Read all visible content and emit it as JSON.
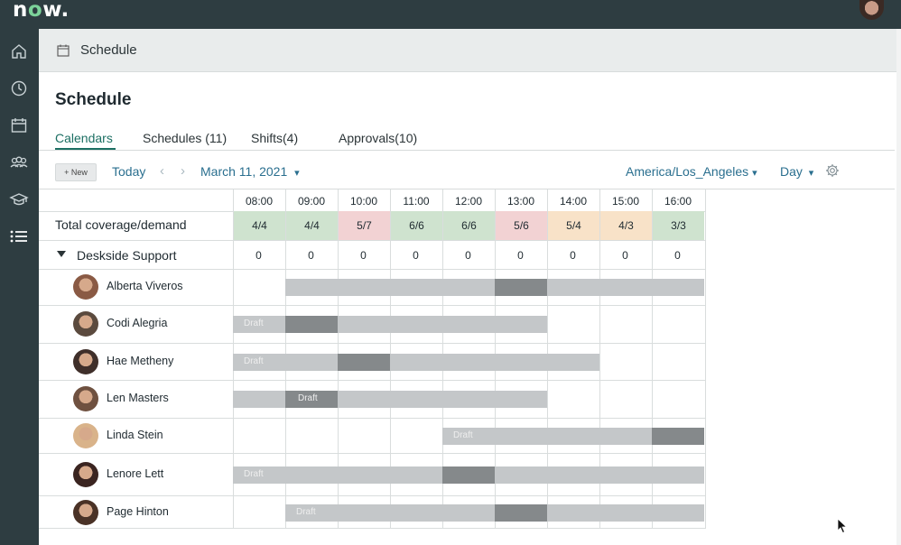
{
  "app": {
    "logo": "now",
    "logo_icon": "servicenow-logo"
  },
  "topbar": {
    "avatar": "user-avatar"
  },
  "sidenav": {
    "items": [
      "home-icon",
      "clock-icon",
      "calendar-icon",
      "people-icon",
      "graduation-cap-icon",
      "list-icon"
    ]
  },
  "header": {
    "title": "Schedule",
    "icon": "calendar-icon"
  },
  "page": {
    "title": "Schedule"
  },
  "tabs": [
    {
      "label": "Calendars",
      "active": true
    },
    {
      "label": "Schedules (11)",
      "active": false
    },
    {
      "label": "Shifts(4)",
      "active": false
    },
    {
      "label": "Approvals(10)",
      "active": false
    }
  ],
  "toolbar": {
    "new_label": "+ New",
    "today_label": "Today",
    "date_label": "March 11, 2021",
    "timezone_label": "America/Los_Angeles",
    "view_label": "Day",
    "caret": "▾"
  },
  "grid": {
    "times": [
      "08:00",
      "09:00",
      "10:00",
      "11:00",
      "12:00",
      "13:00",
      "14:00",
      "15:00",
      "16:00"
    ],
    "coverage_label": "Total coverage/demand",
    "coverage": [
      {
        "value": "4/4",
        "status": "ok"
      },
      {
        "value": "4/4",
        "status": "ok"
      },
      {
        "value": "5/7",
        "status": "under"
      },
      {
        "value": "6/6",
        "status": "ok"
      },
      {
        "value": "6/6",
        "status": "ok"
      },
      {
        "value": "5/6",
        "status": "under"
      },
      {
        "value": "5/4",
        "status": "over"
      },
      {
        "value": "4/3",
        "status": "over"
      },
      {
        "value": "3/3",
        "status": "ok"
      }
    ],
    "status_colors": {
      "ok": "#cfe3cf",
      "under": "#f2d2d3",
      "over": "#f8e2c8"
    },
    "group": {
      "label": "Deskside Support",
      "counts": [
        "0",
        "0",
        "0",
        "0",
        "0",
        "0",
        "0",
        "0",
        "0"
      ]
    },
    "draft_label": "Draft",
    "people": [
      {
        "name": "Alberta Viveros",
        "shifts": [
          {
            "start": 9,
            "end": 17,
            "draft": false,
            "break": [
              13,
              14
            ]
          }
        ]
      },
      {
        "name": "Codi Alegria",
        "shifts": [
          {
            "start": 8,
            "end": 14,
            "draft": true,
            "break": [
              9,
              10
            ]
          }
        ]
      },
      {
        "name": "Hae Metheny",
        "shifts": [
          {
            "start": 8,
            "end": 15,
            "draft": true,
            "break": [
              10,
              11
            ]
          }
        ]
      },
      {
        "name": "Len Masters",
        "shifts": [
          {
            "start": 8,
            "end": 14,
            "draft": false,
            "break": [
              9,
              10
            ],
            "break_label": true
          }
        ]
      },
      {
        "name": "Linda Stein",
        "shifts": [
          {
            "start": 12,
            "end": 17,
            "draft": true,
            "break": [
              16,
              17
            ]
          }
        ]
      },
      {
        "name": "Lenore Lett",
        "shifts": [
          {
            "start": 8,
            "end": 17,
            "draft": true,
            "break": [
              12,
              13
            ]
          }
        ]
      },
      {
        "name": "Page Hinton",
        "shifts": [
          {
            "start": 9,
            "end": 17,
            "draft": true,
            "break": [
              13,
              14
            ]
          }
        ]
      }
    ]
  },
  "colors": {
    "accent": "#1c6f63",
    "link": "#2a6f8f",
    "nav_bg": "#2e3d41",
    "shift": "#c4c7c9",
    "break": "#85898b"
  }
}
